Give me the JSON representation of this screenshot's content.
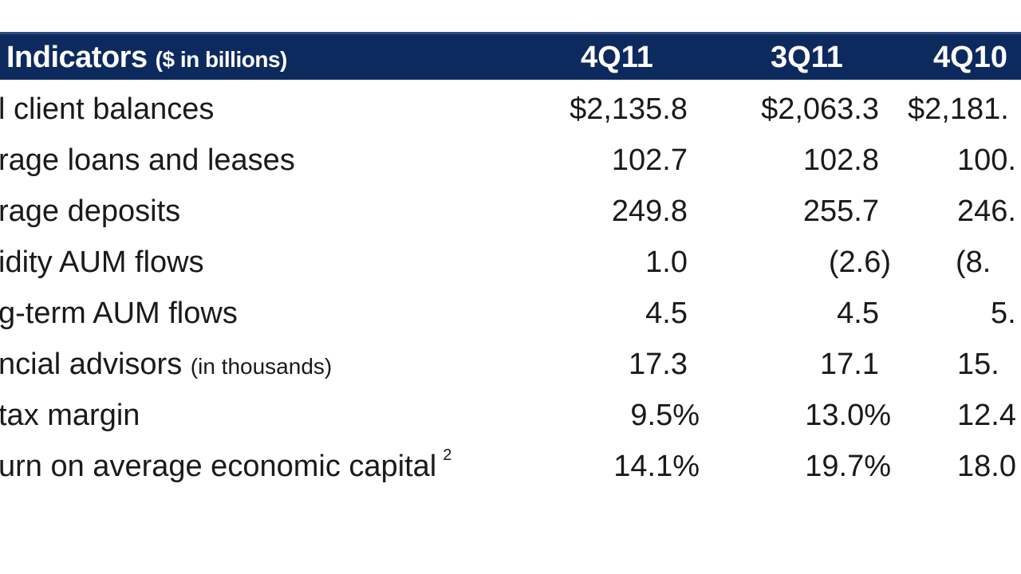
{
  "header": {
    "title": "Indicators",
    "unit": "($ in billions)",
    "columns": [
      "4Q11",
      "3Q11",
      "4Q10"
    ]
  },
  "rows": [
    {
      "label": "l client balances",
      "note": "",
      "sup": "",
      "values": [
        "$2,135.8",
        "$2,063.3",
        "$2,181."
      ]
    },
    {
      "label": "rage loans and leases",
      "note": "",
      "sup": "",
      "values": [
        "102.7",
        "102.8",
        "100."
      ]
    },
    {
      "label": "rage deposits",
      "note": "",
      "sup": "",
      "values": [
        "249.8",
        "255.7",
        "246."
      ]
    },
    {
      "label": "idity AUM flows",
      "note": "",
      "sup": "",
      "values": [
        "1.0",
        "(2.6)",
        "(8."
      ]
    },
    {
      "label": "g-term AUM flows",
      "note": "",
      "sup": "",
      "values": [
        "4.5",
        "4.5",
        "5."
      ]
    },
    {
      "label": "ncial advisors",
      "note": "(in thousands)",
      "sup": "",
      "values": [
        "17.3",
        "17.1",
        "15."
      ]
    },
    {
      "label": "tax margin",
      "note": "",
      "sup": "",
      "values": [
        "9.5%",
        "13.0%",
        "12.4"
      ]
    },
    {
      "label": "urn on average economic capital",
      "note": "",
      "sup": "2",
      "values": [
        "14.1%",
        "19.7%",
        "18.0"
      ]
    }
  ],
  "colors": {
    "header_bg": "#0d2a5e",
    "header_text": "#ffffff"
  }
}
